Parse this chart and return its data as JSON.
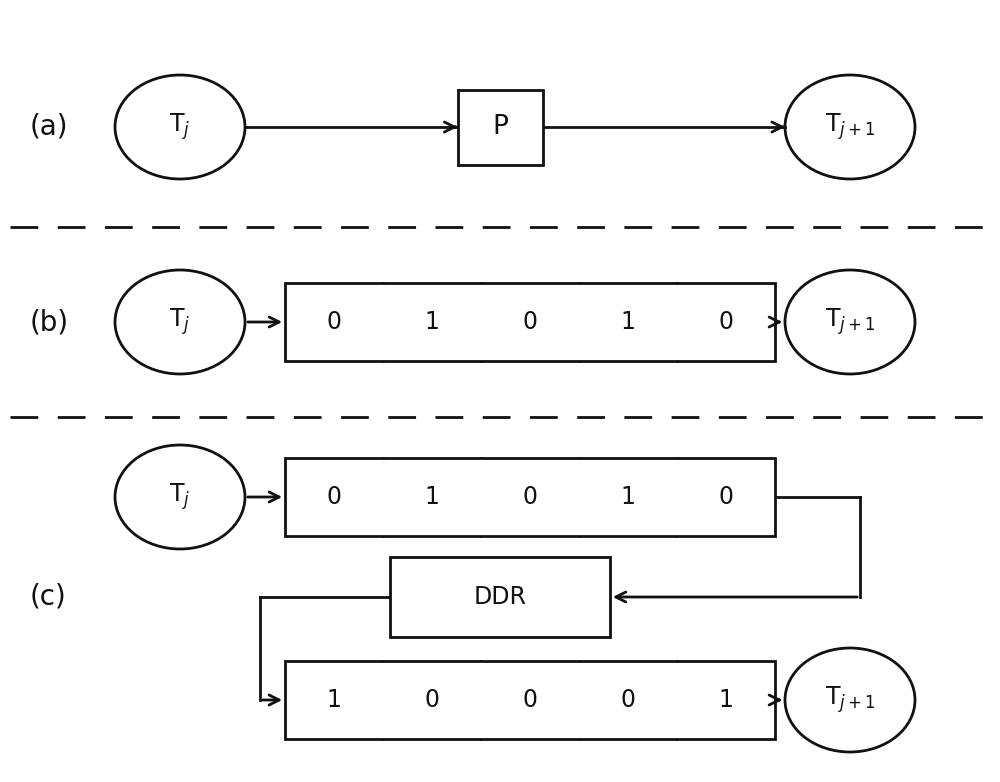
{
  "bg_color": "#ffffff",
  "line_color": "#111111",
  "text_color": "#111111",
  "fig_width": 10.0,
  "fig_height": 7.82,
  "label_a": "(a)",
  "label_b": "(b)",
  "label_c": "(c)",
  "seq_b": [
    "0",
    "1",
    "0",
    "1",
    "0"
  ],
  "seq_c_top": [
    "0",
    "1",
    "0",
    "1",
    "0"
  ],
  "seq_c_bot": [
    "1",
    "0",
    "0",
    "0",
    "1"
  ],
  "font_size_label": 20,
  "font_size_node": 17,
  "font_size_seq": 17,
  "font_size_p": 19
}
